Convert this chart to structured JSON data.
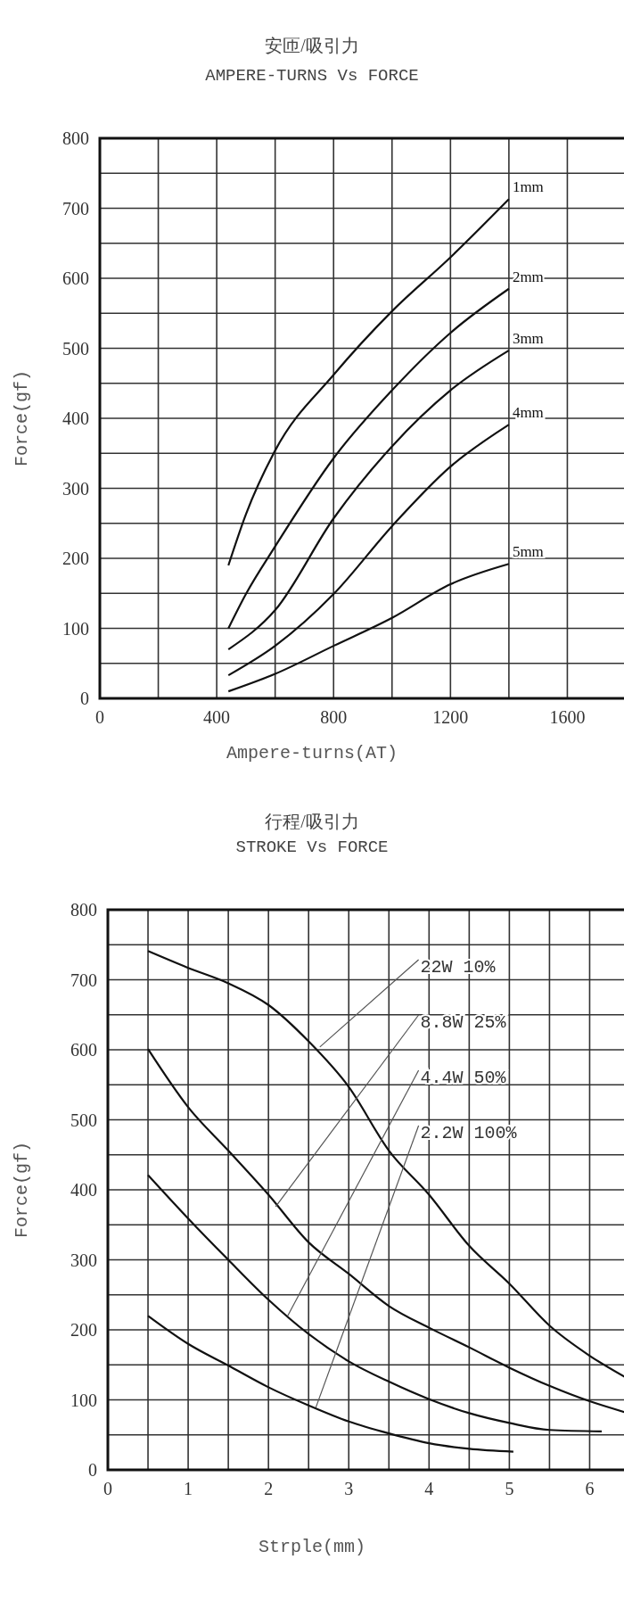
{
  "chart_data": [
    {
      "type": "line",
      "title": "安匝/吸引力",
      "subtitle": "AMPERE-TURNS Vs FORCE",
      "xlabel": "Ampere-turns(AT)",
      "ylabel": "Force(gf)",
      "xlim": [
        0,
        1800
      ],
      "xticks": [
        0,
        400,
        800,
        1200,
        1600
      ],
      "ylim": [
        0,
        800
      ],
      "yticks": [
        0,
        100,
        200,
        300,
        400,
        500,
        600,
        700,
        800
      ],
      "grid": true,
      "marker": "none",
      "line_style": "solid",
      "x": [
        440,
        500,
        600,
        800,
        1000,
        1200,
        1400
      ],
      "series": [
        {
          "name": "1mm",
          "color": "#111111",
          "values": [
            190,
            263,
            354,
            462,
            553,
            630,
            713
          ]
        },
        {
          "name": "2mm",
          "color": "#111111",
          "values": [
            100,
            149,
            217,
            343,
            440,
            522,
            585
          ]
        },
        {
          "name": "3mm",
          "color": "#111111",
          "x": [
            440,
            600,
            800,
            1000,
            1200,
            1400
          ],
          "values": [
            70,
            126,
            257,
            360,
            440,
            497
          ]
        },
        {
          "name": "4mm",
          "color": "#111111",
          "x": [
            440,
            600,
            800,
            1000,
            1200,
            1400
          ],
          "values": [
            33,
            75,
            149,
            246,
            331,
            391
          ]
        },
        {
          "name": "5mm",
          "color": "#111111",
          "x": [
            440,
            600,
            800,
            1000,
            1200,
            1400
          ],
          "values": [
            10,
            35,
            75,
            115,
            163,
            192
          ]
        }
      ]
    },
    {
      "type": "line",
      "title": "行程/吸引力",
      "subtitle": "STROKE Vs FORCE",
      "xlabel": "Strple(mm)",
      "ylabel": "Force(gf)",
      "xlim": [
        0,
        6.45
      ],
      "xticks": [
        0,
        1,
        2,
        3,
        4,
        5,
        6
      ],
      "ylim": [
        0,
        800
      ],
      "yticks": [
        0,
        100,
        200,
        300,
        400,
        500,
        600,
        700,
        800
      ],
      "grid": true,
      "marker": "none",
      "line_style": "solid",
      "series": [
        {
          "color": "#111111",
          "x": [
            0.5,
            1,
            1.5,
            2,
            2.5,
            3,
            3.5,
            4,
            4.5,
            5,
            5.5,
            6,
            6.45
          ],
          "values": [
            741,
            717,
            695,
            664,
            612,
            547,
            456,
            393,
            320,
            266,
            206,
            163,
            132
          ]
        },
        {
          "color": "#111111",
          "x": [
            0.5,
            1,
            1.5,
            2,
            2.5,
            3,
            3.5,
            4,
            4.5,
            5,
            5.5,
            6,
            6.45
          ],
          "values": [
            601,
            518,
            456,
            393,
            325,
            280,
            234,
            203,
            175,
            146,
            120,
            98,
            82
          ]
        },
        {
          "color": "#111111",
          "x": [
            0.5,
            1,
            1.5,
            2,
            2.5,
            3,
            3.5,
            4,
            4.5,
            5,
            5.5,
            6.15
          ],
          "values": [
            421,
            359,
            300,
            243,
            194,
            155,
            126,
            101,
            81,
            67,
            57,
            55
          ]
        },
        {
          "color": "#111111",
          "x": [
            0.5,
            1,
            1.5,
            2,
            2.5,
            3,
            3.5,
            4,
            4.5,
            5.05
          ],
          "values": [
            220,
            180,
            149,
            118,
            92,
            69,
            52,
            38,
            30,
            26
          ]
        }
      ],
      "annotations": [
        {
          "text": "22W 10%",
          "x": 2.64,
          "y": 604
        },
        {
          "text": "8.8W 25%",
          "x": 2.09,
          "y": 376
        },
        {
          "text": "4.4W 50%",
          "x": 2.24,
          "y": 220
        },
        {
          "text": "2.2W 100%",
          "x": 2.59,
          "y": 89
        }
      ]
    }
  ]
}
